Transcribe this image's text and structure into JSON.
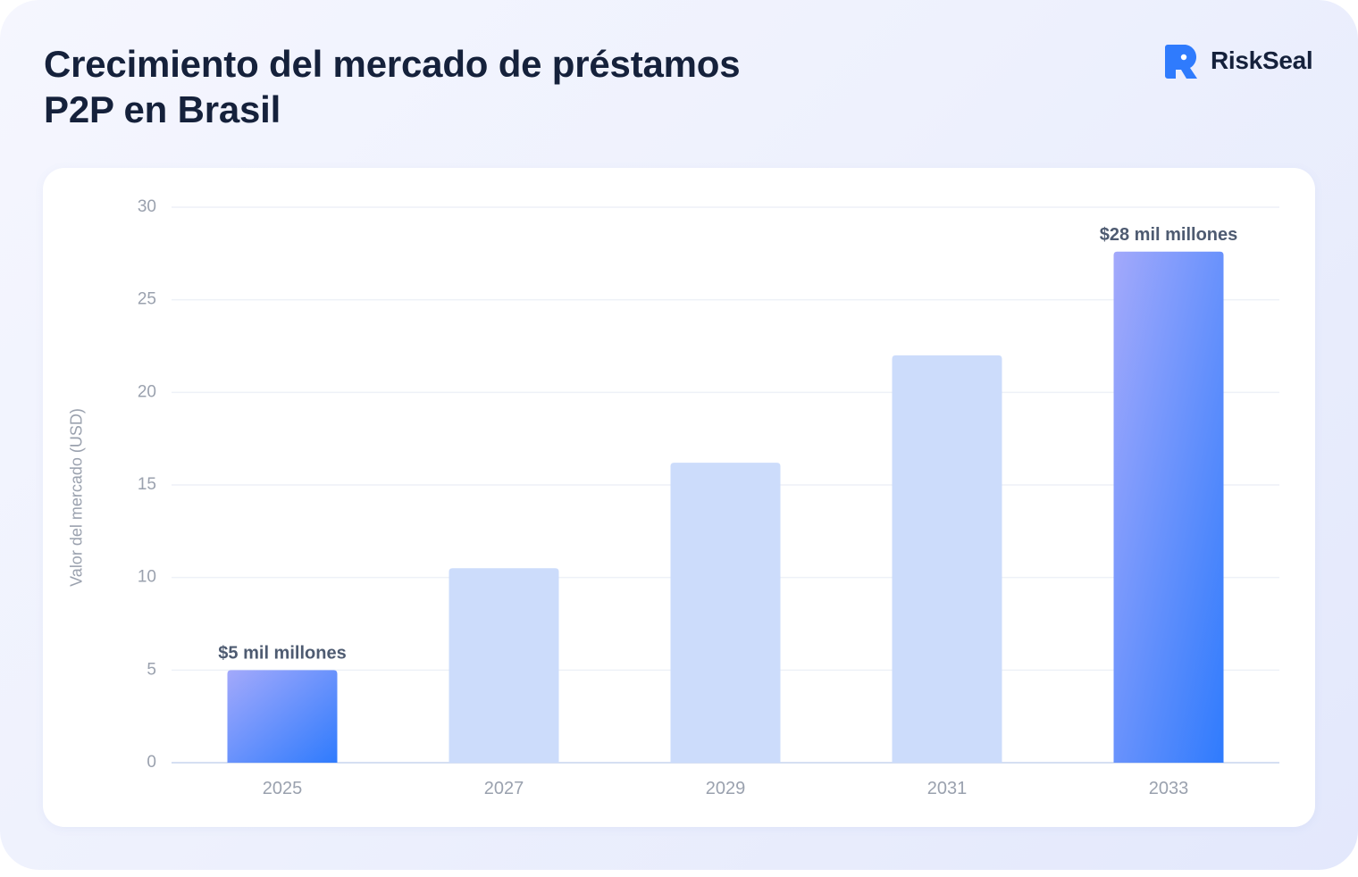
{
  "brand": {
    "name": "RiskSeal",
    "logo_icon": "riskseal-logo-icon",
    "color": "#2f7bfd"
  },
  "chart_data": {
    "type": "bar",
    "title_lines": [
      "Crecimiento del mercado de préstamos",
      "P2P en Brasil"
    ],
    "xlabel": "",
    "ylabel": "Valor del mercado (USD)",
    "categories": [
      "2025",
      "2027",
      "2029",
      "2031",
      "2033"
    ],
    "values": [
      5,
      10.5,
      16.2,
      22,
      27.6
    ],
    "ylim": [
      0,
      30
    ],
    "yticks": [
      0,
      5,
      10,
      15,
      20,
      25,
      30
    ],
    "grid": true,
    "legend": "none",
    "data_labels": [
      "$5 mil millones",
      "",
      "",
      "",
      "$28 mil millones"
    ],
    "highlighted": [
      true,
      false,
      false,
      false,
      true
    ],
    "colors": {
      "highlight_top": "#a3a9fb",
      "highlight_bottom": "#2f7bfd",
      "muted": "#ccdcfb",
      "grid": "#eef1f7",
      "axis": "#d5dff2",
      "tick_text": "#9aa1ae",
      "label_text": "#4e5b71"
    }
  }
}
